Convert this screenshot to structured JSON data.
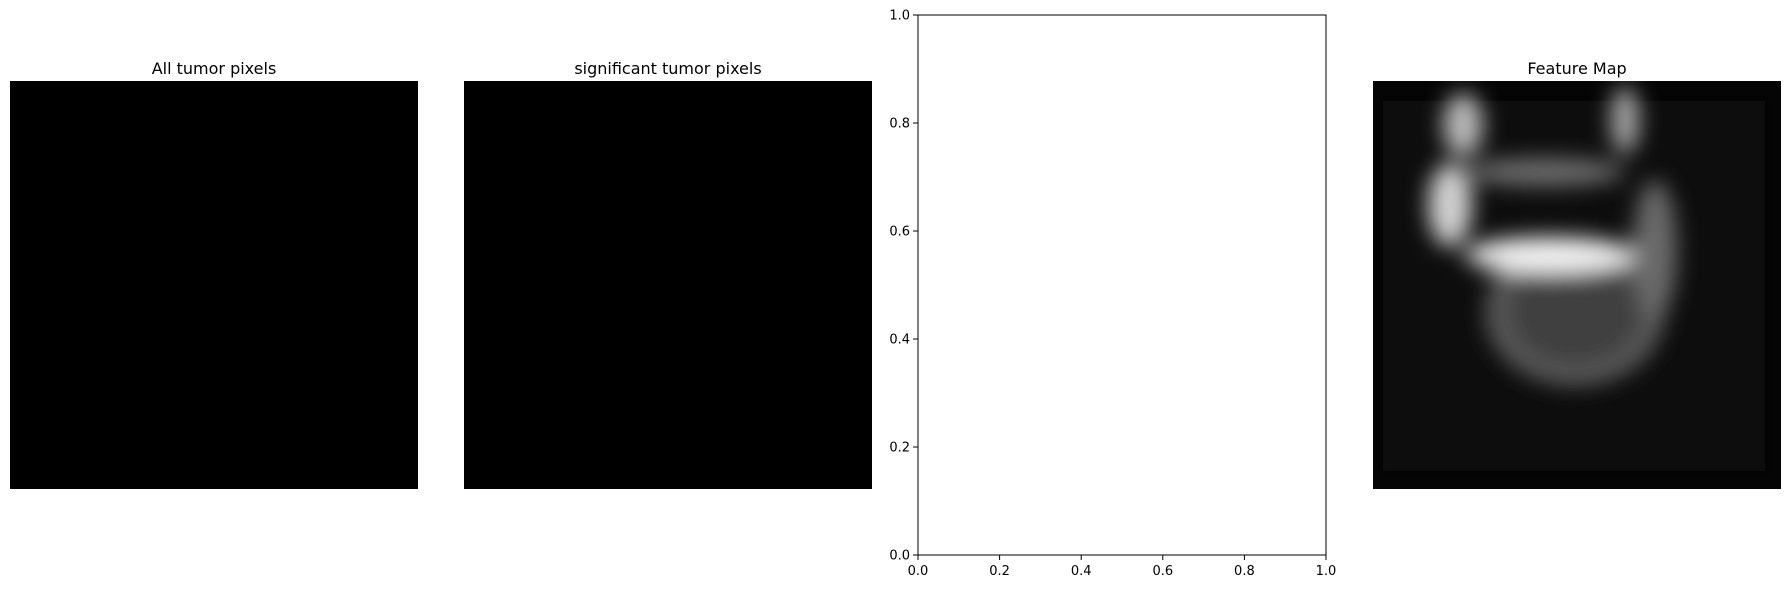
{
  "figure": {
    "panels": [
      {
        "title": "All tumor pixels",
        "kind": "image",
        "fill": "#000000"
      },
      {
        "title": "significant tumor pixels",
        "kind": "image",
        "fill": "#000000"
      },
      {
        "title": "",
        "kind": "empty-axes"
      },
      {
        "title": "Feature Map",
        "kind": "image",
        "colormap": "gray"
      }
    ]
  },
  "chart_data": [
    {
      "type": "heatmap",
      "title": "All tumor pixels",
      "values": "all zero (uniform black)"
    },
    {
      "type": "heatmap",
      "title": "significant tumor pixels",
      "values": "all zero (uniform black)"
    },
    {
      "type": "scatter",
      "title": "",
      "series": [],
      "xlim": [
        0.0,
        1.0
      ],
      "ylim": [
        0.0,
        1.0
      ],
      "xticks": [
        "0.0",
        "0.2",
        "0.4",
        "0.6",
        "0.8",
        "1.0"
      ],
      "yticks": [
        "0.0",
        "0.2",
        "0.4",
        "0.6",
        "0.8",
        "1.0"
      ],
      "grid": false
    },
    {
      "type": "heatmap",
      "title": "Feature Map",
      "colormap": "gray"
    }
  ]
}
